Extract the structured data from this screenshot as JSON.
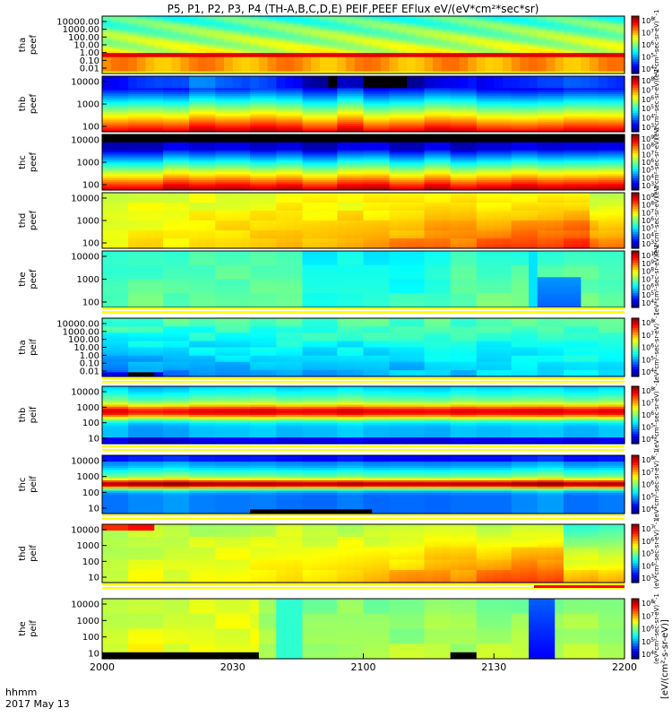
{
  "title": "P5, P1, P2, P3, P4 (TH-A,B,C,D,E) PEIF,PEEF EFlux eV/(eV*cm²*sec*sr)",
  "colorbar_label_top": "(eV*cm²-sec-sr-eV)^-1",
  "colorbar_label_bottom": "[eV/(cm²-s-sr-eV)]",
  "x_axis": {
    "ticks": [
      "2000",
      "2030",
      "2100",
      "2130",
      "2200"
    ],
    "corner_label_1": "hhmm",
    "corner_label_2": "2017 May 13"
  },
  "chart_data": {
    "type": "heatmap",
    "x_range": [
      "20:00",
      "22:00"
    ],
    "x_ticks": [
      "2000",
      "2030",
      "2100",
      "2130",
      "2200"
    ],
    "panels": [
      {
        "ylabel_1": "tha",
        "ylabel_2": "peef",
        "yticks": [
          "10000.00",
          "1000.00",
          "100.00",
          "10.00",
          "1.00",
          "0.10",
          "0.01"
        ],
        "cbar_ticks": [
          "10^8",
          "10^7",
          "10^6",
          "10^5",
          "10^4"
        ],
        "cbar_sup": [
          "8",
          "7",
          "6",
          "5",
          "4"
        ],
        "profile": "tha_peef"
      },
      {
        "ylabel_1": "thb",
        "ylabel_2": "peef",
        "yticks": [
          "10000",
          "1000",
          "100"
        ],
        "cbar_ticks": [
          "10^8",
          "10^7",
          "10^6",
          "10^5",
          "10^4",
          "10^3"
        ],
        "cbar_sup": [
          "8",
          "7",
          "6",
          "5",
          "4",
          "3"
        ],
        "profile": "thb_peef"
      },
      {
        "ylabel_1": "thc",
        "ylabel_2": "peef",
        "yticks": [
          "10000",
          "1000",
          "100"
        ],
        "cbar_ticks": [
          "10^9",
          "10^8",
          "10^7",
          "10^6",
          "10^5",
          "10^4",
          "10^3"
        ],
        "cbar_sup": [
          "9",
          "8",
          "7",
          "6",
          "5",
          "4",
          "3"
        ],
        "profile": "thc_peef"
      },
      {
        "ylabel_1": "thd",
        "ylabel_2": "peef",
        "yticks": [
          "10000",
          "1000",
          "100"
        ],
        "cbar_ticks": [
          "10^9",
          "10^8",
          "10^7",
          "10^6",
          "10^5",
          "10^4",
          "10^3"
        ],
        "cbar_sup": [
          "9",
          "8",
          "7",
          "6",
          "5",
          "4",
          "3"
        ],
        "profile": "thd_peef"
      },
      {
        "ylabel_1": "the",
        "ylabel_2": "peef",
        "yticks": [
          "10000",
          "1000",
          "100"
        ],
        "cbar_ticks": [
          "10^10",
          "10^9",
          "10^8",
          "10^7",
          "10^6",
          "10^5",
          "10^4"
        ],
        "cbar_sup": [
          "10",
          "9",
          "8",
          "7",
          "6",
          "5",
          "4"
        ],
        "profile": "the_peef"
      },
      {
        "ylabel_1": "tha",
        "ylabel_2": "peif",
        "yticks": [
          "10000.00",
          "1000.00",
          "100.00",
          "10.00",
          "1.00",
          "0.10",
          "0.01"
        ],
        "cbar_ticks": [
          "10^8",
          "10^7",
          "10^6",
          "10^5",
          "10^4"
        ],
        "cbar_sup": [
          "8",
          "7",
          "6",
          "5",
          "4"
        ],
        "profile": "tha_peif"
      },
      {
        "ylabel_1": "thb",
        "ylabel_2": "peif",
        "yticks": [
          "10000",
          "1000",
          "100",
          "10"
        ],
        "cbar_ticks": [
          "10^8",
          "10^7",
          "10^6",
          "10^5",
          "10^4"
        ],
        "cbar_sup": [
          "8",
          "7",
          "6",
          "5",
          "4"
        ],
        "profile": "thb_peif"
      },
      {
        "ylabel_1": "thc",
        "ylabel_2": "peif",
        "yticks": [
          "10000",
          "1000",
          "100",
          "10"
        ],
        "cbar_ticks": [
          "10^8",
          "10^7",
          "10^6",
          "10^5",
          "10^4"
        ],
        "cbar_sup": [
          "8",
          "7",
          "6",
          "5",
          "4"
        ],
        "profile": "thc_peif"
      },
      {
        "ylabel_1": "thd",
        "ylabel_2": "peif",
        "yticks": [
          "10000",
          "1000",
          "100",
          "10"
        ],
        "cbar_ticks": [
          "10^7",
          "10^6",
          "10^5",
          "10^4",
          "10^3"
        ],
        "cbar_sup": [
          "7",
          "6",
          "5",
          "4",
          "3"
        ],
        "profile": "thd_peif"
      },
      {
        "ylabel_1": "the",
        "ylabel_2": "peif",
        "yticks": [
          "10000",
          "1000",
          "100",
          "10"
        ],
        "cbar_ticks": [
          "10^8",
          "10^7",
          "10^6",
          "10^5",
          "10^4"
        ],
        "cbar_sup": [
          "8",
          "7",
          "6",
          "5",
          "4"
        ],
        "profile": "the_peif"
      }
    ]
  }
}
